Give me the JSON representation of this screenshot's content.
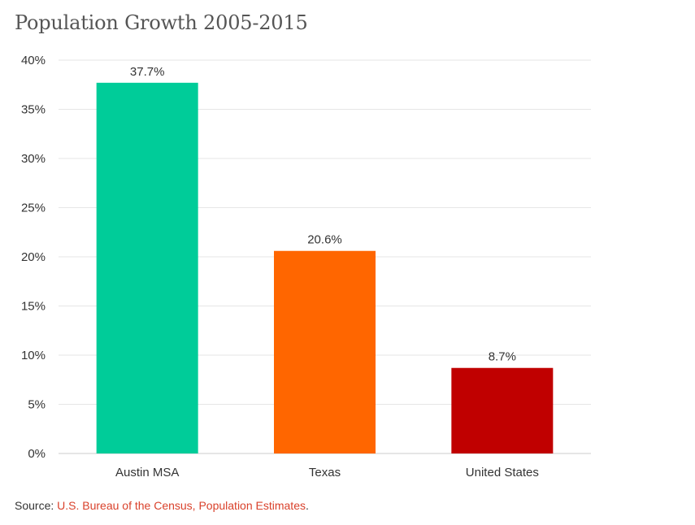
{
  "chart_data": {
    "type": "bar",
    "title": "Population Growth 2005-2015",
    "categories": [
      "Austin MSA",
      "Texas",
      "United States"
    ],
    "values": [
      37.7,
      20.6,
      8.7
    ],
    "data_labels": [
      "37.7%",
      "20.6%",
      "8.7%"
    ],
    "colors": [
      "#00cc99",
      "#ff6600",
      "#c00000"
    ],
    "ylim": [
      0,
      40
    ],
    "y_ticks": [
      0,
      5,
      10,
      15,
      20,
      25,
      30,
      35,
      40
    ],
    "y_tick_labels": [
      "0%",
      "5%",
      "10%",
      "15%",
      "20%",
      "25%",
      "30%",
      "35%",
      "40%"
    ],
    "grid": true,
    "xlabel": "",
    "ylabel": ""
  },
  "source": {
    "prefix": "Source: ",
    "link_text": "U.S. Bureau of the Census, Population Estimates",
    "suffix": "."
  }
}
